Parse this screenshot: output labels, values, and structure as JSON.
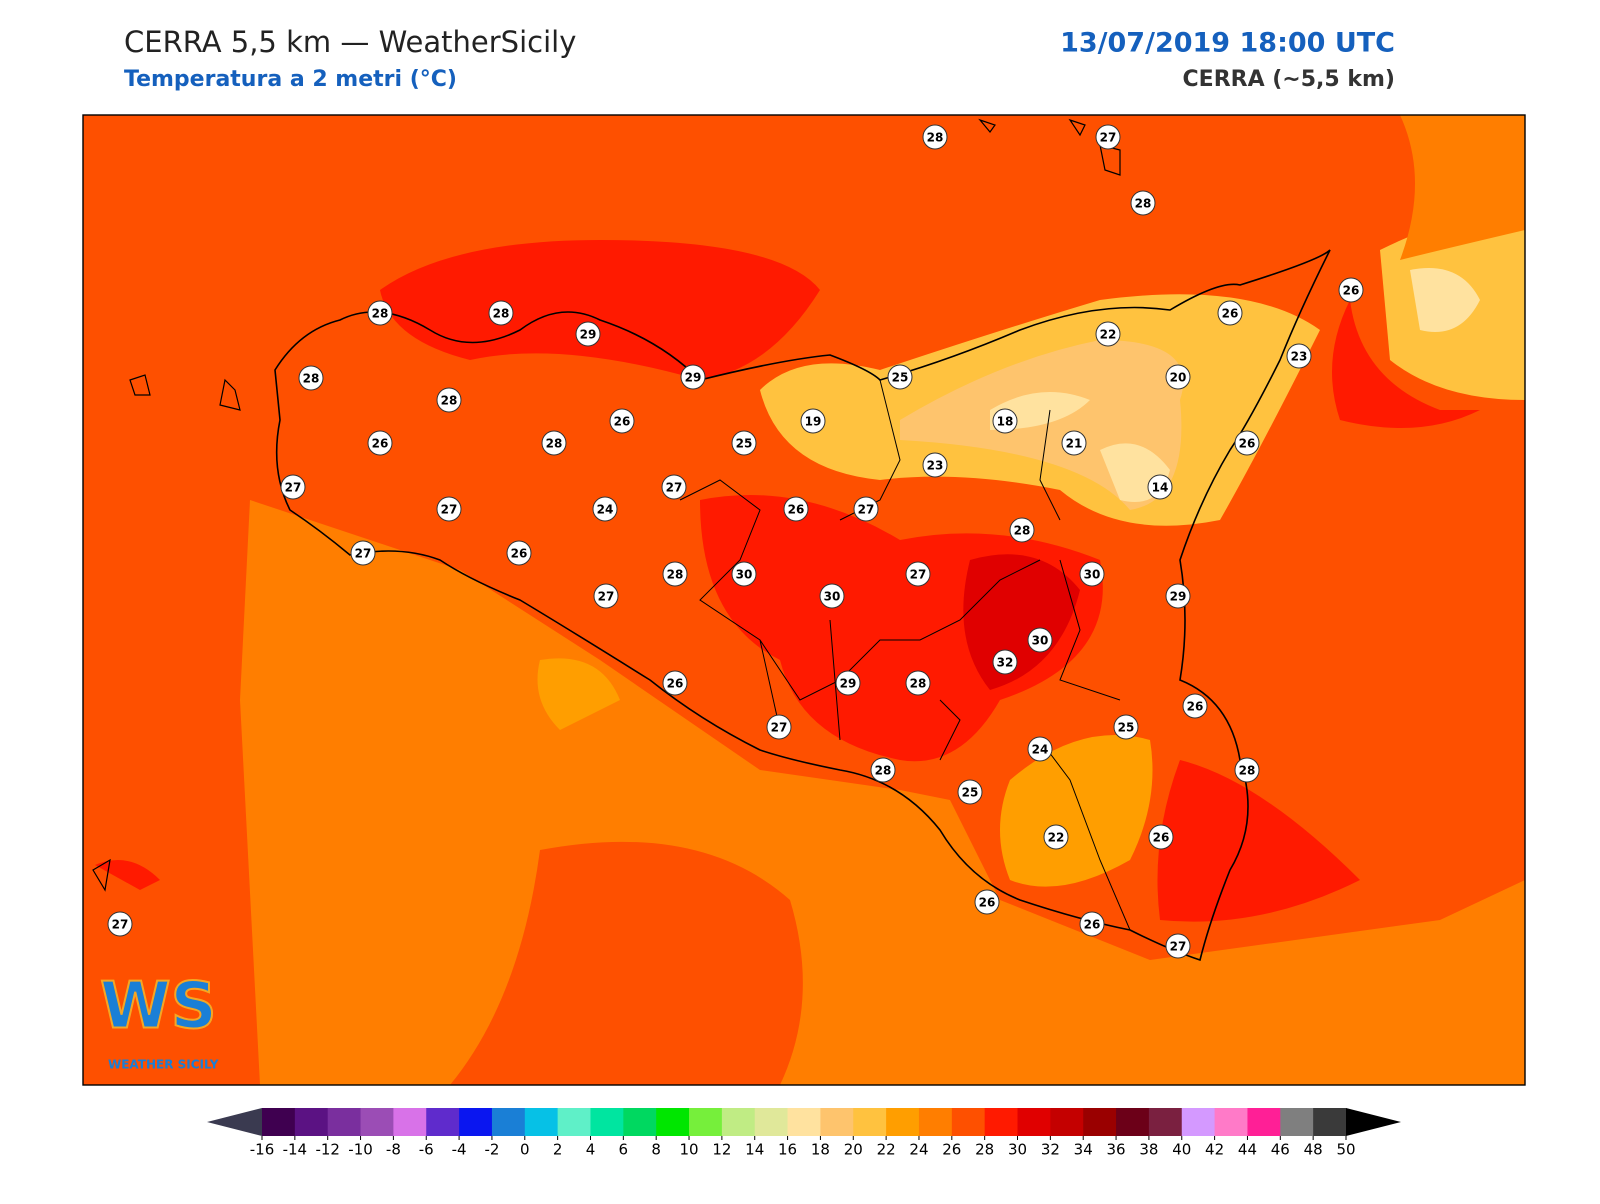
{
  "header": {
    "title": "CERRA 5,5 km — WeatherSicily",
    "subtitle": "Temperatura a 2 metri (°C)",
    "datetime": "13/07/2019 18:00 UTC",
    "model": "CERRA (~5,5 km)"
  },
  "stations": {
    "values": [
      28,
      27,
      28,
      28,
      28,
      29,
      28,
      29,
      25,
      22,
      26,
      26,
      23,
      20,
      28,
      26,
      26,
      28,
      25,
      19,
      18,
      21,
      26,
      23,
      14,
      27,
      27,
      27,
      24,
      26,
      27,
      28,
      27,
      26,
      28,
      30,
      30,
      27,
      30,
      29,
      27,
      30,
      32,
      29,
      28,
      26,
      26,
      25,
      27,
      24,
      28,
      28,
      25,
      22,
      26,
      26,
      26,
      27,
      27
    ]
  },
  "colorbar": {
    "ticks": [
      -16,
      -14,
      -12,
      -10,
      -8,
      -6,
      -4,
      -2,
      0,
      2,
      4,
      6,
      8,
      10,
      12,
      14,
      16,
      18,
      20,
      22,
      24,
      26,
      28,
      30,
      32,
      34,
      36,
      38,
      40,
      42,
      44,
      46,
      48,
      50
    ],
    "colors": [
      "#3f0050",
      "#5b1283",
      "#7a2f9e",
      "#9b4db5",
      "#d872e8",
      "#5f2bcc",
      "#0a16f0",
      "#1a7fd6",
      "#06c1e6",
      "#5ff0c8",
      "#00e5a0",
      "#00d860",
      "#00e600",
      "#76ef3b",
      "#c0ec84",
      "#e0e89a",
      "#ffe29f",
      "#fec46d",
      "#ffc23f",
      "#ff9e00",
      "#ff7e00",
      "#fe5000",
      "#ff1a00",
      "#e00000",
      "#c40000",
      "#9a0000",
      "#6c0018",
      "#7a2040",
      "#d499ff",
      "#ff7ac8",
      "#ff1f96",
      "#7f7f7f",
      "#3a3a3a"
    ],
    "under_color": "#3a3a50",
    "over_color": "#000000"
  },
  "logo": {
    "mark": "WS",
    "text": "WEATHER SICILY"
  }
}
